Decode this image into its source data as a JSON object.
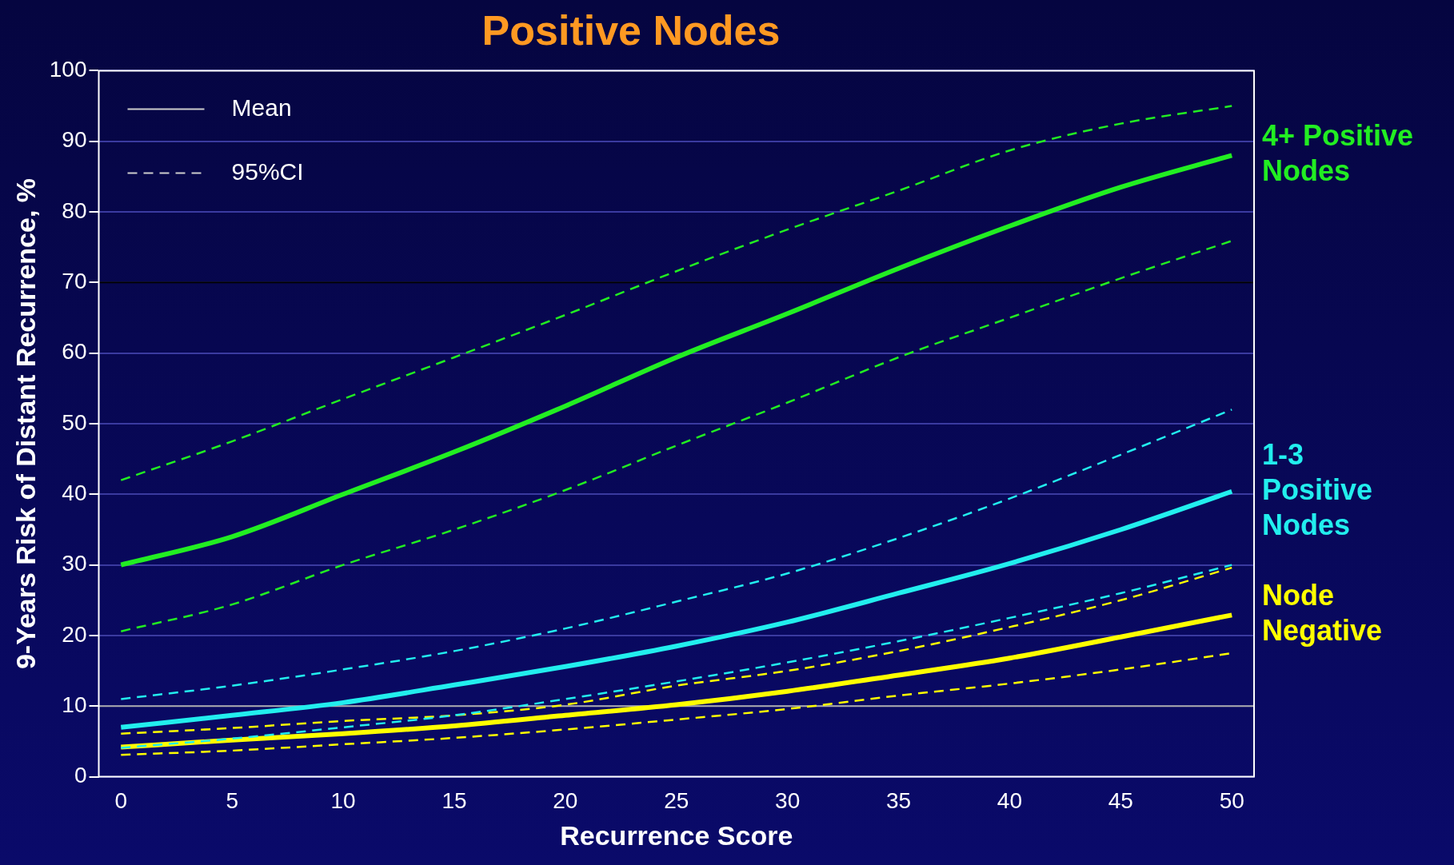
{
  "chart_data": {
    "type": "line",
    "title": "Positive Nodes",
    "xlabel": "Recurrence Score",
    "ylabel": "9-Years Risk of Distant Recurrence, %",
    "x": [
      0,
      5,
      10,
      15,
      20,
      25,
      30,
      35,
      40,
      45,
      50
    ],
    "series": [
      {
        "name": "4+ Positive Nodes",
        "color": "#22ee22",
        "values": [
          30,
          34,
          40,
          46,
          52.5,
          59.4,
          65.6,
          72,
          78,
          83.5,
          88
        ]
      },
      {
        "color": "#22ee22",
        "line_style": "dashed",
        "values": [
          42,
          47.5,
          53.5,
          59.4,
          65.4,
          71.6,
          77.5,
          83,
          88.7,
          92.5,
          95
        ]
      },
      {
        "color": "#22ee22",
        "line_style": "dashed",
        "values": [
          20.6,
          24.4,
          30,
          35,
          40.6,
          46.9,
          53,
          59.4,
          65,
          70.6,
          75.9
        ]
      },
      {
        "name": "1-3 Positive Nodes",
        "color": "#22eeee",
        "values": [
          7,
          8.7,
          10.5,
          13,
          15.6,
          18.5,
          21.9,
          26,
          30.2,
          35,
          40.4
        ]
      },
      {
        "color": "#22eeee",
        "line_style": "dashed",
        "values": [
          11,
          12.9,
          15.2,
          17.8,
          21,
          24.8,
          28.8,
          33.8,
          39.4,
          45.6,
          52
        ]
      },
      {
        "color": "#22eeee",
        "line_style": "dashed",
        "values": [
          4.1,
          5.4,
          7,
          8.7,
          11,
          13.5,
          16.2,
          19.2,
          22.5,
          26,
          30
        ]
      },
      {
        "name": "Node Negative",
        "color": "#ffff00",
        "values": [
          4.2,
          5.2,
          6.1,
          7.2,
          8.7,
          10.2,
          12.1,
          14.4,
          16.8,
          19.8,
          22.9
        ]
      },
      {
        "color": "#ffff00",
        "line_style": "dashed",
        "values": [
          6.1,
          6.9,
          7.9,
          8.7,
          10.2,
          12.9,
          15,
          17.8,
          21.2,
          25,
          29.6
        ]
      },
      {
        "color": "#ffff00",
        "line_style": "dashed",
        "values": [
          3.1,
          3.7,
          4.6,
          5.5,
          6.7,
          8.1,
          9.6,
          11.5,
          13.2,
          15.2,
          17.5
        ]
      }
    ],
    "xlim": [
      -1,
      51
    ],
    "xticks": [
      0,
      5,
      10,
      15,
      20,
      25,
      30,
      35,
      40,
      45,
      50
    ],
    "ylim": [
      0,
      100
    ],
    "yticks": [
      0,
      10,
      20,
      30,
      40,
      50,
      60,
      70,
      80,
      90,
      100
    ],
    "grid": "y",
    "marker": "none",
    "line_style": "solid",
    "legend": "right",
    "ref_lines": [
      {
        "axis": "y",
        "value": 70,
        "color": "#000000"
      },
      {
        "axis": "y",
        "value": 10,
        "color": "#aaaaaa"
      }
    ],
    "annotations": [
      "Mean",
      "95%CI"
    ]
  }
}
